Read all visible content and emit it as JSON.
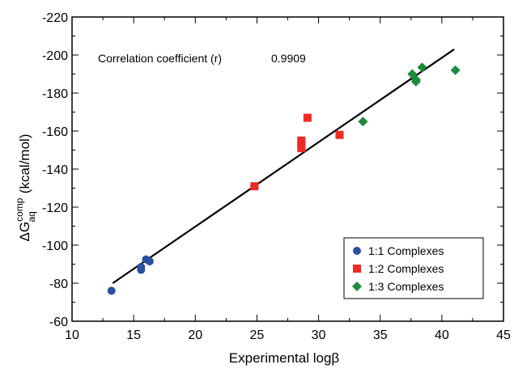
{
  "chart_data": {
    "type": "scatter",
    "xlabel": "Experimental logβ",
    "ylabel": {
      "prefix": "ΔG",
      "superscript": "comp",
      "subscript": "aq",
      "unit": "(kcal/mol)"
    },
    "xlim": [
      10,
      45
    ],
    "ylim": [
      -60,
      -220
    ],
    "xticks": [
      10,
      15,
      20,
      25,
      30,
      35,
      40,
      45
    ],
    "yticks": [
      -60,
      -80,
      -100,
      -120,
      -140,
      -160,
      -180,
      -200,
      -220
    ],
    "grid": false,
    "legend_position": "bottom-right",
    "annotation": {
      "label": "Correlation coefficient (r)",
      "value": "0.9909"
    },
    "fit_line": {
      "x": [
        13.3,
        41.0
      ],
      "y": [
        -80,
        -203
      ],
      "color": "#000000"
    },
    "series": [
      {
        "name": "1:1 Complexes",
        "marker": "circle",
        "color": "#2b4fa2",
        "x": [
          13.2,
          15.6,
          15.6,
          16.0,
          16.3
        ],
        "y": [
          -76,
          -87,
          -88.5,
          -92.5,
          -91.5
        ]
      },
      {
        "name": "1:2 Complexes",
        "marker": "square",
        "color": "#ee2a24",
        "x": [
          24.8,
          28.6,
          28.6,
          28.6,
          29.1,
          31.7
        ],
        "y": [
          -131,
          -151,
          -153,
          -155,
          -167,
          -158
        ]
      },
      {
        "name": "1:3 Complexes",
        "marker": "diamond",
        "color": "#1e8a3c",
        "x": [
          33.6,
          37.6,
          37.9,
          37.9,
          38.4,
          41.1
        ],
        "y": [
          -165,
          -190,
          -187,
          -186,
          -193.5,
          -192
        ]
      }
    ]
  }
}
